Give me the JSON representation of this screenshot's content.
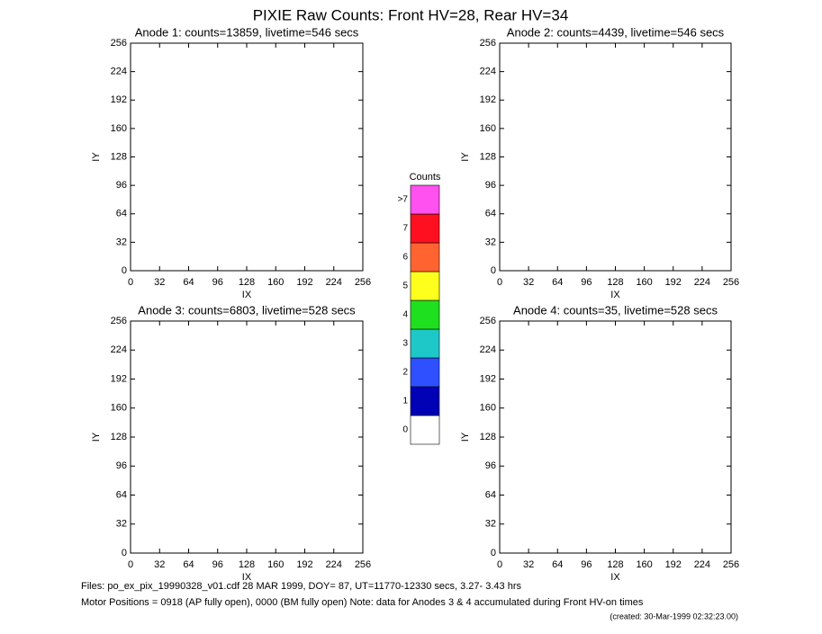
{
  "title": "PIXIE Raw Counts:  Front HV=28, Rear HV=34",
  "chart_data": [
    {
      "type": "heatmap",
      "title": "Anode 1: counts=13859, livetime=546 secs",
      "xlabel": "IX",
      "ylabel": "IY",
      "xlim": [
        0,
        256
      ],
      "ylim": [
        0,
        256
      ],
      "xticks": [
        0,
        32,
        64,
        96,
        128,
        160,
        192,
        224,
        256
      ],
      "yticks": [
        0,
        32,
        64,
        96,
        128,
        160,
        192,
        224,
        256
      ]
    },
    {
      "type": "heatmap",
      "title": "Anode 2: counts=4439, livetime=546 secs",
      "xlabel": "IX",
      "ylabel": "IY",
      "xlim": [
        0,
        256
      ],
      "ylim": [
        0,
        256
      ],
      "xticks": [
        0,
        32,
        64,
        96,
        128,
        160,
        192,
        224,
        256
      ],
      "yticks": [
        0,
        32,
        64,
        96,
        128,
        160,
        192,
        224,
        256
      ]
    },
    {
      "type": "heatmap",
      "title": "Anode 3: counts=6803, livetime=528 secs",
      "xlabel": "IX",
      "ylabel": "IY",
      "xlim": [
        0,
        256
      ],
      "ylim": [
        0,
        256
      ],
      "xticks": [
        0,
        32,
        64,
        96,
        128,
        160,
        192,
        224,
        256
      ],
      "yticks": [
        0,
        32,
        64,
        96,
        128,
        160,
        192,
        224,
        256
      ]
    },
    {
      "type": "heatmap",
      "title": "Anode 4: counts=35, livetime=528 secs",
      "xlabel": "IX",
      "ylabel": "IY",
      "xlim": [
        0,
        256
      ],
      "ylim": [
        0,
        256
      ],
      "xticks": [
        0,
        32,
        64,
        96,
        128,
        160,
        192,
        224,
        256
      ],
      "yticks": [
        0,
        32,
        64,
        96,
        128,
        160,
        192,
        224,
        256
      ]
    }
  ],
  "colorbar": {
    "title": "Counts",
    "levels": [
      0,
      1,
      2,
      3,
      4,
      5,
      6,
      7,
      ">7"
    ],
    "colors": [
      "#ffffff",
      "#0000b4",
      "#2e50ff",
      "#1ec8c8",
      "#1ee01e",
      "#ffff1e",
      "#ff6430",
      "#ff1020",
      "#ff50f0"
    ]
  },
  "footer": [
    "Files: po_ex_pix_19990328_v01.cdf    28 MAR 1999, DOY= 87, UT=11770-12330 secs,  3.27- 3.43 hrs",
    "Motor Positions = 0918 (AP fully open), 0000 (BM fully open)    Note: data for Anodes 3 & 4 accumulated during Front HV-on times",
    "(created: 30-Mar-1999 02:32:23.00)"
  ]
}
